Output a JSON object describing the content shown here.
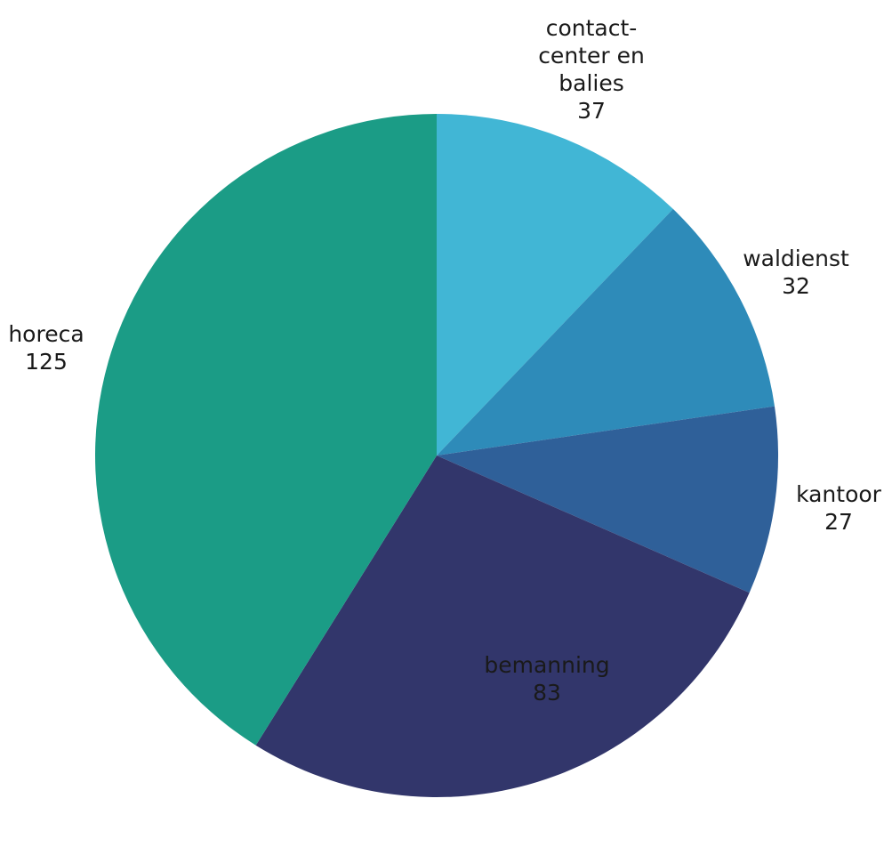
{
  "chart_data": {
    "type": "pie",
    "title": "",
    "start_angle_deg": 0,
    "direction": "clockwise",
    "slices": [
      {
        "label_lines": [
          "contact-",
          "center en",
          "balies"
        ],
        "value": 37,
        "value_text": "37",
        "color": "#41b6d5"
      },
      {
        "label_lines": [
          "waldienst"
        ],
        "value": 32,
        "value_text": "32",
        "color": "#2e8bb9"
      },
      {
        "label_lines": [
          "kantoor"
        ],
        "value": 27,
        "value_text": "27",
        "color": "#2f6099"
      },
      {
        "label_lines": [
          "bemanning"
        ],
        "value": 83,
        "value_text": "83",
        "color": "#32366b"
      },
      {
        "label_lines": [
          "horeca"
        ],
        "value": 125,
        "value_text": "125",
        "color": "#1b9c86"
      }
    ]
  }
}
